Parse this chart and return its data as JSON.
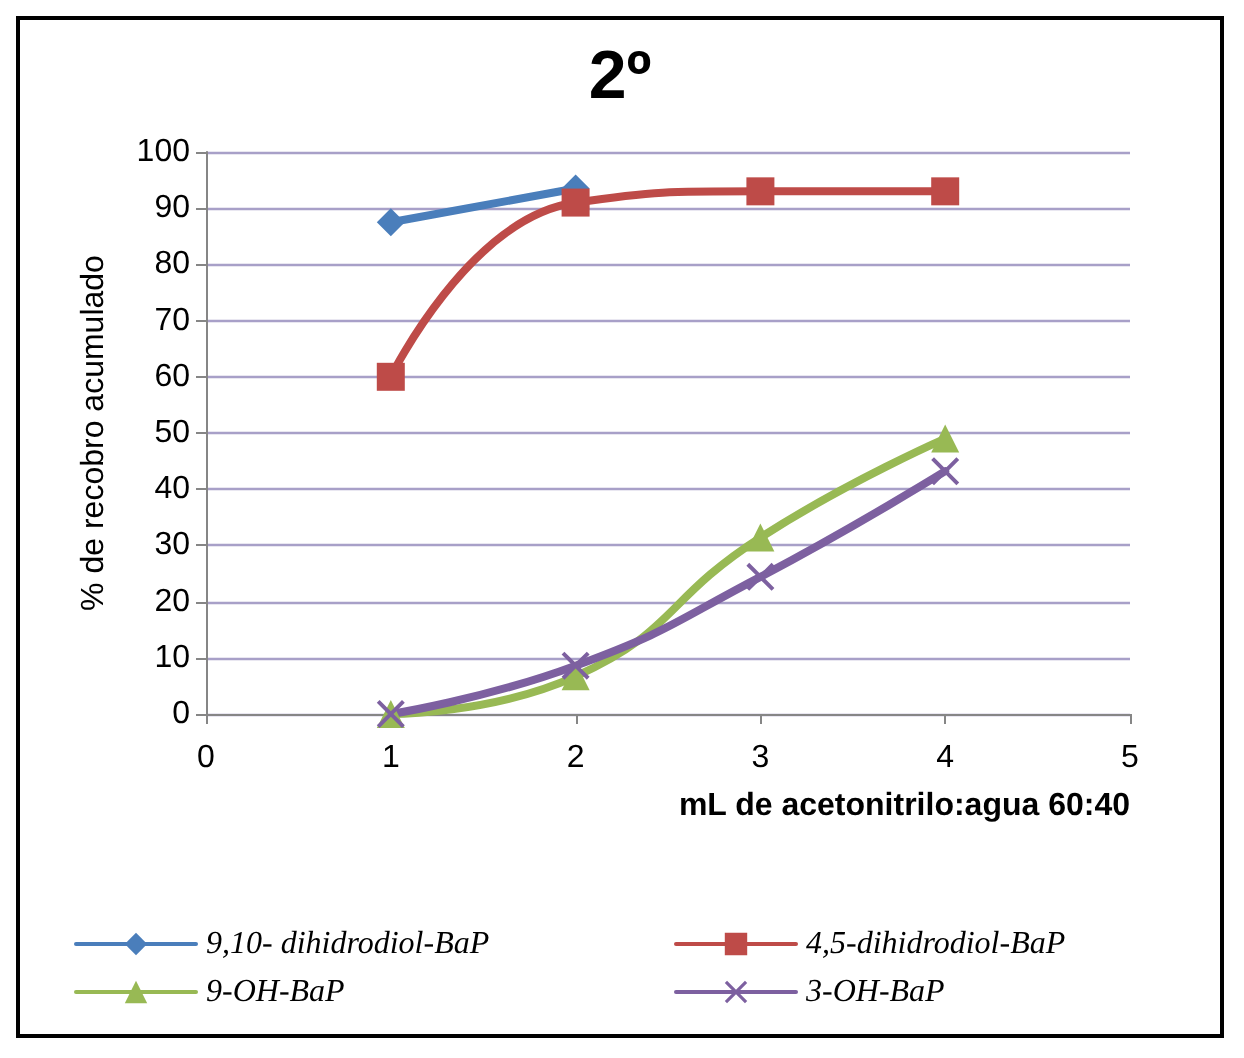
{
  "chart_data": {
    "type": "line",
    "title": "2º",
    "xlabel": "mL de acetonitrilo:agua 60:40",
    "ylabel": "% de recobro acumulado",
    "x": [
      1,
      2,
      3,
      4
    ],
    "xlim": [
      0,
      5
    ],
    "xticks": [
      0,
      1,
      2,
      3,
      4,
      5
    ],
    "ylim": [
      0,
      100
    ],
    "yticks": [
      0,
      10,
      20,
      30,
      40,
      50,
      60,
      70,
      80,
      90,
      100
    ],
    "grid": "y",
    "legend": "bottom",
    "line_style": "solid",
    "series": [
      {
        "name": "9,10- dihidrodiol-BaP",
        "color": "#4a7ebb",
        "marker": "diamond",
        "values": [
          87.5,
          93.5,
          null,
          null
        ]
      },
      {
        "name": "4,5-dihidrodiol-BaP",
        "color": "#be4b48",
        "marker": "square",
        "values": [
          60,
          91,
          93,
          93
        ]
      },
      {
        "name": "9-OH-BaP",
        "color": "#98b954",
        "marker": "triangle",
        "values": [
          0,
          6.7,
          31.4,
          49
        ]
      },
      {
        "name": "3-OH-BaP",
        "color": "#7d60a0",
        "marker": "cross",
        "values": [
          0,
          8.6,
          24.4,
          43.2
        ]
      }
    ]
  }
}
